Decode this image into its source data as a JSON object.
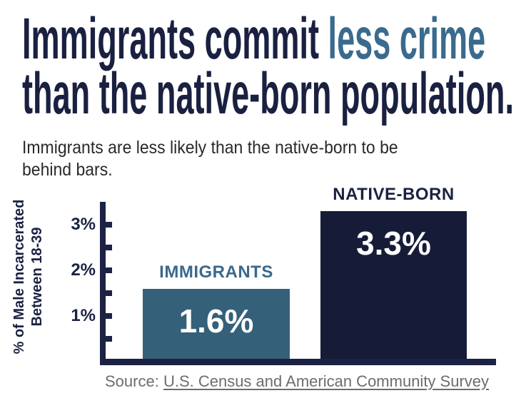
{
  "headline": {
    "part1": "Immigrants commit ",
    "accent": "less crime",
    "line2": "than the native-born population.",
    "main_color": "#1a2040",
    "accent_color": "#3a6b8e"
  },
  "subtitle": {
    "line1": "Immigrants are less likely than the native-born to be",
    "line2": "behind bars."
  },
  "chart_data": {
    "type": "bar",
    "title": "Immigrants commit less crime than the native-born population.",
    "ylabel": "% of Male Incarcerated Between 18-39",
    "ylabel_line1": "% of Male Incarcerated",
    "ylabel_line2": "Between 18-39",
    "categories": [
      "IMMIGRANTS",
      "NATIVE-BORN"
    ],
    "values": [
      1.6,
      3.3
    ],
    "value_labels": [
      "1.6%",
      "3.3%"
    ],
    "bar_colors": [
      "#35607a",
      "#161c38"
    ],
    "category_label_colors": [
      "#3a698c",
      "#1b2243"
    ],
    "ylim": [
      0,
      3.5
    ],
    "ytick_values": [
      0.5,
      1,
      1.5,
      2,
      2.5,
      3
    ],
    "yticks_labeled": [
      {
        "value": 1,
        "label": "1%"
      },
      {
        "value": 2,
        "label": "2%"
      },
      {
        "value": 3,
        "label": "3%"
      }
    ],
    "grid": false,
    "legend": false,
    "axis_color": "#1b2243"
  },
  "source": {
    "prefix": "Source: ",
    "link": "U.S. Census and American Community Survey"
  }
}
